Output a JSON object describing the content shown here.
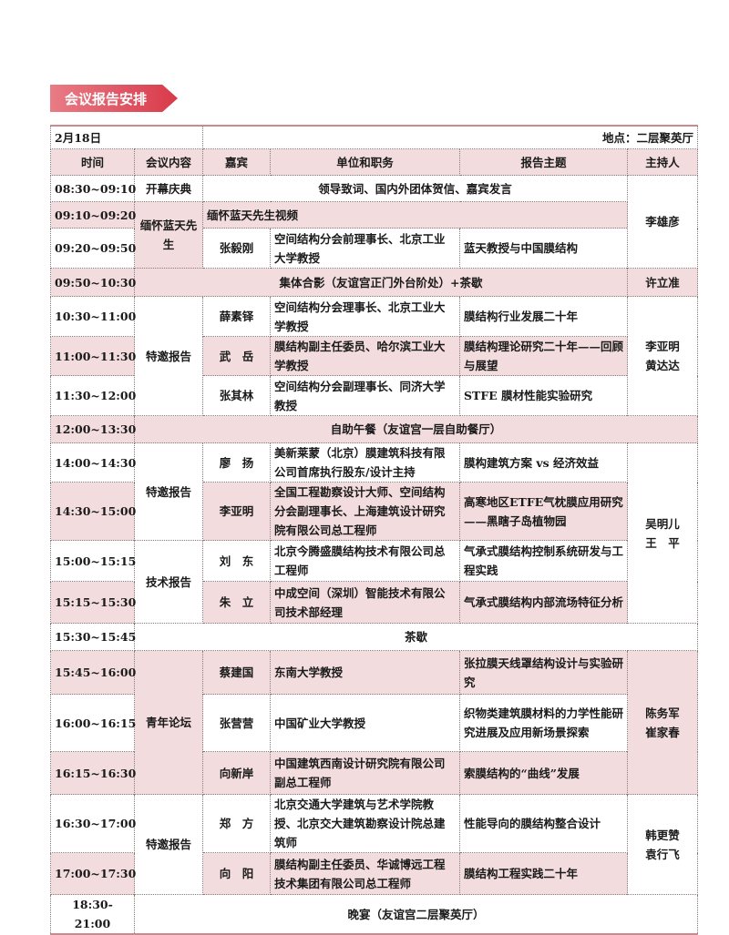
{
  "section_title": "会议报告安排",
  "date": "2月18日",
  "venue": "地点：二层聚英厅",
  "headers": [
    "时间",
    "会议内容",
    "嘉宾",
    "单位和职务",
    "报告主题",
    "主持人"
  ],
  "rows": [
    {
      "time": "08:30~09:10",
      "content": "开幕庆典",
      "span": "领导致词、国内外团体贺信、嘉宾发言",
      "host": "李雄彦"
    },
    {
      "time": "09:10~09:20",
      "content": "缅怀蓝天先生",
      "span": "缅怀蓝天先生视频"
    },
    {
      "time": "09:20~09:50",
      "guest": "张毅刚",
      "org": "空间结构分会前理事长、北京工业大学教授",
      "topic": "蓝天教授与中国膜结构"
    },
    {
      "time": "09:50~10:30",
      "span": "集体合影（友谊宫正门外台阶处）+茶歇",
      "host": "许立准"
    },
    {
      "time": "10:30~11:00",
      "content": "特邀报告",
      "guest": "薛素铎",
      "org": "空间结构分会理事长、北京工业大学教授",
      "topic": "膜结构行业发展二十年",
      "host": "李亚明 黄达达"
    },
    {
      "time": "11:00~11:30",
      "guest": "武　岳",
      "org": "膜结构副主任委员、哈尔滨工业大学教授",
      "topic": "膜结构理论研究二十年——回顾与展望"
    },
    {
      "time": "11:30~12:00",
      "guest": "张其林",
      "org": "空间结构分会副理事长、同济大学教授",
      "topic": "STFE 膜材性能实验研究"
    },
    {
      "time": "12:00~13:30",
      "span": "自助午餐（友谊宫一层自助餐厅）"
    },
    {
      "time": "14:00~14:30",
      "content": "特邀报告",
      "guest": "廖　扬",
      "org": "美新莱蒙（北京）膜建筑科技有限公司首席执行股东/设计主持",
      "topic": "膜构建筑方案 vs 经济效益",
      "host": "吴明儿 王　平"
    },
    {
      "time": "14:30~15:00",
      "guest": "李亚明",
      "org": "全国工程勘察设计大师、空间结构分会副理事长、上海建筑设计研究院有限公司总工程师",
      "topic": "高寒地区ETFE气枕膜应用研究——黑瞎子岛植物园"
    },
    {
      "time": "15:00~15:15",
      "content": "技术报告",
      "guest": "刘　东",
      "org": "北京今腾盛膜结构技术有限公司总工程师",
      "topic": "气承式膜结构控制系统研发与工程实践"
    },
    {
      "time": "15:15~15:30",
      "guest": "朱　立",
      "org": "中成空间（深圳）智能技术有限公司技术部经理",
      "topic": "气承式膜结构内部流场特征分析"
    },
    {
      "time": "15:30~15:45",
      "span": "茶歇"
    },
    {
      "time": "15:45~16:00",
      "content": "青年论坛",
      "guest": "蔡建国",
      "org": "东南大学教授",
      "topic": "张拉膜天线罩结构设计与实验研究",
      "host": "陈务军 崔家春"
    },
    {
      "time": "16:00~16:15",
      "guest": "张营营",
      "org": "中国矿业大学教授",
      "topic": "织物类建筑膜材料的力学性能研究进展及应用新场景探索"
    },
    {
      "time": "16:15~16:30",
      "guest": "向新岸",
      "org": "中国建筑西南设计研究院有限公司副总工程师",
      "topic": "索膜结构的“曲线”发展"
    },
    {
      "time": "16:30~17:00",
      "content": "特邀报告",
      "guest": "郑　方",
      "org": "北京交通大学建筑与艺术学院教授、北京交大建筑勘察设计院总建筑师",
      "topic": "性能导向的膜结构整合设计",
      "host": "韩更赞 袁行飞"
    },
    {
      "time": "17:00~17:30",
      "guest": "向　阳",
      "org": "膜结构副主任委员、华诚博远工程技术集团有限公司总工程师",
      "topic": "膜结构工程实践二十年"
    },
    {
      "time": "18:30-21:00",
      "span": "晚宴（友谊宫二层聚英厅）"
    }
  ],
  "colors": {
    "accent": "#d93a4a",
    "row_shade": "#f2dcdd"
  }
}
